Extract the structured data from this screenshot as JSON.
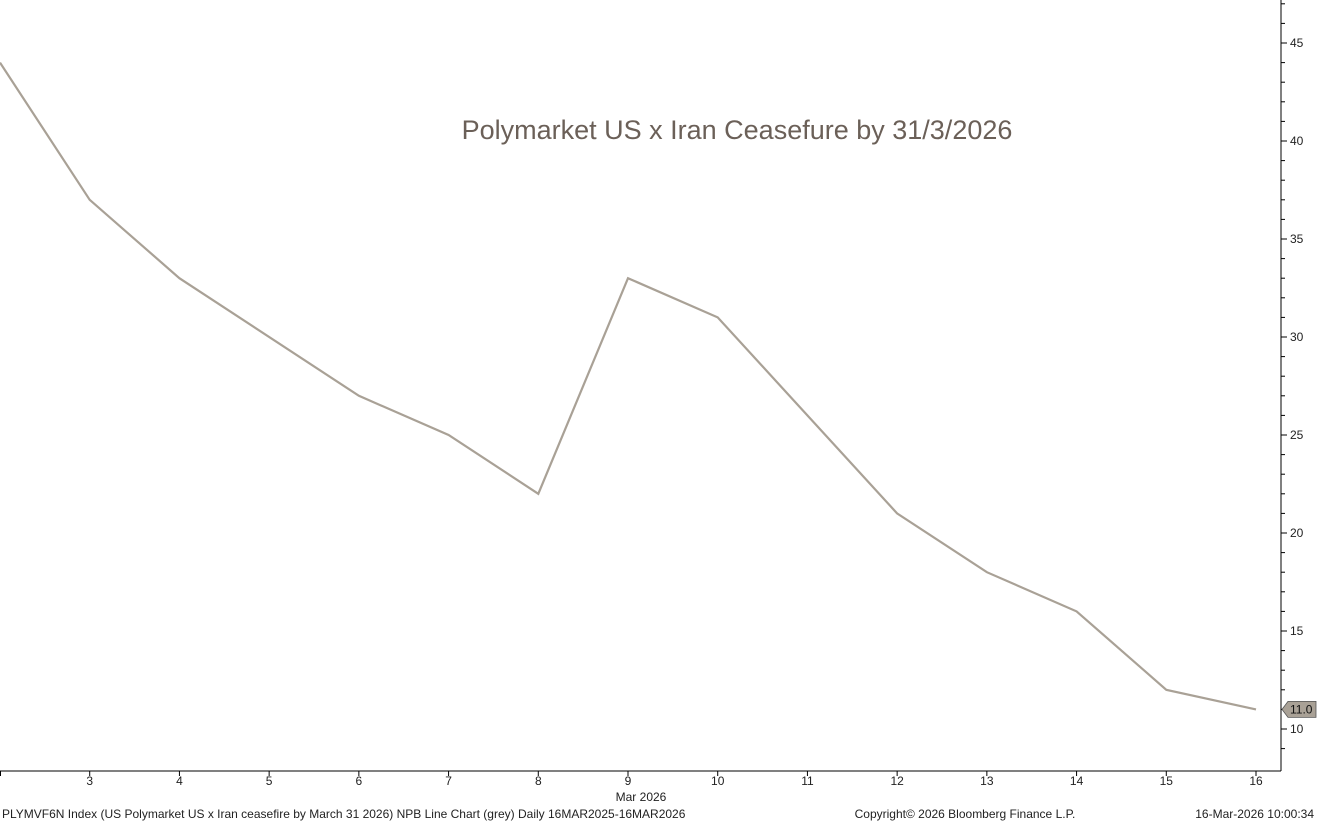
{
  "chart_data": {
    "type": "line",
    "title": "Polymarket US x Iran Ceasefure by 31/3/2026",
    "xlabel": "",
    "ylabel": "",
    "x_period_label": "Mar 2026",
    "x_ticks": [
      "3",
      "4",
      "5",
      "6",
      "7",
      "8",
      "9",
      "10",
      "11",
      "12",
      "13",
      "14",
      "15",
      "16"
    ],
    "y_ticks": [
      "10",
      "15",
      "20",
      "25",
      "30",
      "35",
      "40",
      "45"
    ],
    "xlim": [
      2,
      16
    ],
    "ylim": [
      8,
      47
    ],
    "series": [
      {
        "color": "#a9a196",
        "x": [
          2,
          3,
          4,
          6,
          7,
          8,
          9,
          10,
          12,
          13,
          14,
          15,
          16
        ],
        "values": [
          44,
          37,
          33,
          27,
          25,
          22,
          33,
          31,
          21,
          18,
          16,
          12,
          11
        ]
      }
    ],
    "last_value_label": "11.0",
    "grid": false
  },
  "footer": {
    "description": "PLYMVF6N Index (US Polymarket US x Iran ceasefire by March 31 2026) NPB Line Chart (grey) Daily 16MAR2025-16MAR2026",
    "copyright": "Copyright© 2026 Bloomberg Finance L.P.",
    "timestamp": "16-Mar-2026 10:00:34"
  },
  "colors": {
    "line": "#a9a196",
    "title": "#6b6058",
    "axis": "#000000",
    "last_value_badge": "#a9a196"
  }
}
